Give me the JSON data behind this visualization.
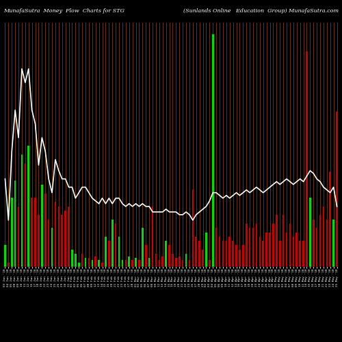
{
  "title_left": "MunafaSutra  Money  Flow  Charts for STG",
  "title_right": "(Sunlands Online   Education  Group) MunafaSutra.com",
  "background_color": "#000000",
  "bar_color_positive": "#00dd00",
  "bar_color_negative": "#cc0000",
  "line_color": "#ffffff",
  "grid_color": "#8B4500",
  "bar_heights": [
    25,
    5,
    80,
    100,
    70,
    130,
    120,
    140,
    80,
    80,
    60,
    95,
    85,
    55,
    45,
    75,
    70,
    60,
    65,
    70,
    20,
    15,
    5,
    15,
    10,
    10,
    8,
    12,
    8,
    5,
    35,
    30,
    55,
    50,
    35,
    8,
    8,
    12,
    8,
    10,
    8,
    45,
    25,
    10,
    70,
    15,
    8,
    12,
    30,
    25,
    15,
    10,
    12,
    8,
    15,
    8,
    90,
    35,
    30,
    20,
    40,
    8,
    270,
    45,
    35,
    30,
    30,
    35,
    30,
    25,
    20,
    25,
    50,
    45,
    45,
    50,
    35,
    30,
    40,
    40,
    50,
    60,
    30,
    60,
    40,
    50,
    35,
    40,
    30,
    30,
    250,
    80,
    55,
    45,
    60,
    70,
    55,
    110,
    55,
    180
  ],
  "bar_colors": [
    "g",
    "r",
    "g",
    "g",
    "r",
    "g",
    "r",
    "g",
    "r",
    "r",
    "r",
    "g",
    "r",
    "r",
    "g",
    "r",
    "r",
    "r",
    "r",
    "r",
    "g",
    "g",
    "g",
    "r",
    "g",
    "r",
    "g",
    "r",
    "g",
    "r",
    "g",
    "r",
    "g",
    "r",
    "g",
    "g",
    "r",
    "g",
    "r",
    "g",
    "r",
    "g",
    "r",
    "g",
    "r",
    "r",
    "r",
    "r",
    "g",
    "r",
    "r",
    "r",
    "r",
    "r",
    "g",
    "r",
    "r",
    "r",
    "r",
    "r",
    "g",
    "r",
    "g",
    "r",
    "r",
    "r",
    "r",
    "r",
    "r",
    "r",
    "r",
    "r",
    "r",
    "r",
    "r",
    "r",
    "r",
    "r",
    "r",
    "r",
    "r",
    "r",
    "r",
    "r",
    "r",
    "r",
    "r",
    "r",
    "r",
    "r",
    "r",
    "g",
    "r",
    "r",
    "r",
    "r",
    "r",
    "r",
    "g",
    "r"
  ],
  "line_values": [
    55,
    40,
    65,
    80,
    70,
    95,
    90,
    95,
    80,
    75,
    60,
    70,
    65,
    55,
    50,
    62,
    58,
    55,
    55,
    52,
    52,
    48,
    50,
    52,
    52,
    50,
    48,
    47,
    46,
    48,
    46,
    48,
    46,
    48,
    48,
    46,
    45,
    46,
    45,
    46,
    45,
    46,
    45,
    45,
    43,
    43,
    43,
    43,
    44,
    43,
    43,
    43,
    42,
    42,
    43,
    42,
    40,
    42,
    43,
    44,
    45,
    47,
    50,
    50,
    49,
    48,
    49,
    48,
    49,
    50,
    49,
    50,
    51,
    50,
    51,
    52,
    51,
    50,
    51,
    52,
    53,
    54,
    53,
    54,
    55,
    54,
    53,
    54,
    55,
    54,
    56,
    58,
    57,
    55,
    54,
    52,
    51,
    50,
    52,
    45
  ],
  "dates": [
    "03 Jan '18",
    "04 Jan '18",
    "05 Jan '18",
    "08 Jan '18",
    "09 Jan '18",
    "10 Jan '18",
    "11 Jan '18",
    "12 Jan '18",
    "16 Jan '18",
    "17 Jan '18",
    "18 Jan '18",
    "19 Jan '18",
    "22 Jan '18",
    "23 Jan '18",
    "24 Jan '18",
    "25 Jan '18",
    "26 Jan '18",
    "29 Jan '18",
    "30 Jan '18",
    "31 Jan '18",
    "01 Feb '18",
    "02 Feb '18",
    "05 Feb '18",
    "06 Feb '18",
    "07 Feb '18",
    "08 Feb '18",
    "09 Feb '18",
    "12 Feb '18",
    "13 Feb '18",
    "14 Feb '18",
    "15 Feb '18",
    "16 Feb '18",
    "20 Feb '18",
    "21 Feb '18",
    "22 Feb '18",
    "23 Feb '18",
    "26 Feb '18",
    "27 Feb '18",
    "28 Feb '18",
    "01 Mar '18",
    "02 Mar '18",
    "05 Mar '18",
    "06 Mar '18",
    "07 Mar '18",
    "08 Mar '18",
    "09 Mar '18",
    "12 Mar '18",
    "13 Mar '18",
    "14 Mar '18",
    "15 Mar '18",
    "16 Mar '18",
    "19 Mar '18",
    "20 Mar '18",
    "21 Mar '18",
    "22 Mar '18",
    "23 Mar '18",
    "26 Mar '18",
    "27 Mar '18",
    "28 Mar '18",
    "29 Mar '18",
    "02 Apr '18",
    "03 Apr '18",
    "04 Apr '18",
    "05 Apr '18",
    "06 Apr '18",
    "09 Apr '18",
    "10 Apr '18",
    "11 Apr '18",
    "12 Apr '18",
    "13 Apr '18",
    "16 Apr '18",
    "17 Apr '18",
    "18 Apr '18",
    "19 Apr '18",
    "20 Apr '18",
    "23 Apr '18",
    "24 Apr '18",
    "25 Apr '18",
    "26 Apr '18",
    "27 Apr '18",
    "30 Apr '18",
    "01 May '18",
    "02 May '18",
    "03 May '18",
    "04 May '18",
    "07 May '18",
    "08 May '18",
    "09 May '18",
    "10 May '18",
    "11 May '18",
    "14 May '18",
    "15 May '18",
    "16 May '18",
    "17 May '18",
    "18 May '18",
    "21 May '18",
    "22 May '18",
    "23 May '18",
    "24 May '18",
    "25 May '18"
  ]
}
